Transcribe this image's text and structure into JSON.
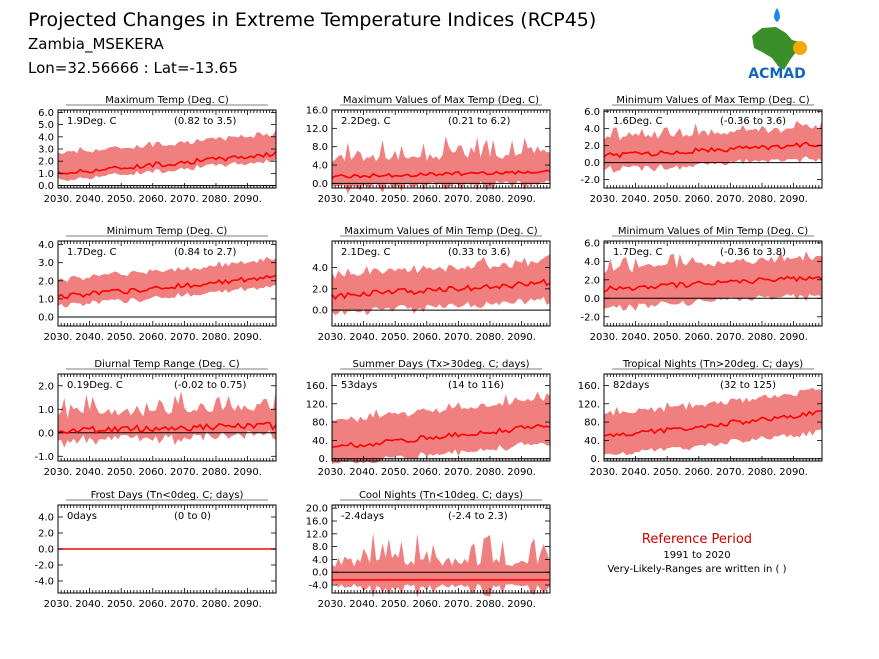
{
  "header": {
    "title": "Projected Changes in Extreme Temperature Indices (RCP45)",
    "station": "Zambia_MSEKERA",
    "coords": "Lon=32.56666 : Lat=-13.65"
  },
  "logo": {
    "text": "ACMAD"
  },
  "reference": {
    "title": "Reference Period",
    "period": "1991 to 2020",
    "note": "Very-Likely-Ranges are written in ( )"
  },
  "colors": {
    "band": "#f08080",
    "line": "#ff0000",
    "zero": "#000000",
    "reference_title": "#cc0000",
    "logo_text": "#1565c0",
    "logo_map": "#3a8f2a",
    "logo_drop": "#1e88e5",
    "logo_sun": "#f2a900"
  },
  "chart_data": [
    {
      "type": "area",
      "title": "Maximum Temp (Deg. C)",
      "annotation_left": "1.9Deg. C",
      "annotation_right": "(0.82 to 3.5)",
      "x_ticks": [
        "2030.",
        "2040.",
        "2050.",
        "2060.",
        "2070.",
        "2080.",
        "2090."
      ],
      "y_ticks": [
        "0.0",
        "1.0",
        "2.0",
        "3.0",
        "4.0",
        "5.0",
        "6.0"
      ],
      "xlim": [
        2030,
        2099
      ],
      "ylim": [
        -0.2,
        6.2
      ],
      "mean_start": 1.0,
      "mean_end": 2.6,
      "band_low": 0.5,
      "band_high": 1.6,
      "noise": 0.2,
      "spike": 0.3
    },
    {
      "type": "area",
      "title": "Maximum Values of Max Temp (Deg. C)",
      "annotation_left": "2.2Deg. C",
      "annotation_right": "(0.21 to 6.2)",
      "x_ticks": [
        "2030.",
        "2040.",
        "2050.",
        "2060.",
        "2070.",
        "2080.",
        "2090."
      ],
      "y_ticks": [
        "0.0",
        "4.0",
        "8.0",
        "12.0",
        "16.0"
      ],
      "xlim": [
        2030,
        2099
      ],
      "ylim": [
        -1,
        16
      ],
      "mean_start": 1.5,
      "mean_end": 2.6,
      "band_low": 1.8,
      "band_high": 3.0,
      "noise": 0.4,
      "spike": 5.0
    },
    {
      "type": "area",
      "title": "Minimum Values of Max Temp (Deg. C)",
      "annotation_left": "1.6Deg. C",
      "annotation_right": "(-0.36 to 3.6)",
      "x_ticks": [
        "2030.",
        "2040.",
        "2050.",
        "2060.",
        "2070.",
        "2080.",
        "2090."
      ],
      "y_ticks": [
        "-2.0",
        "0.0",
        "2.0",
        "4.0",
        "6.0"
      ],
      "xlim": [
        2030,
        2099
      ],
      "ylim": [
        -3,
        6.2
      ],
      "mean_start": 0.8,
      "mean_end": 2.2,
      "band_low": 1.5,
      "band_high": 1.8,
      "noise": 0.3,
      "spike": 1.5
    },
    {
      "type": "area",
      "title": "Minimum Temp (Deg. C)",
      "annotation_left": "1.7Deg. C",
      "annotation_right": "(0.84 to 2.7)",
      "x_ticks": [
        "2030.",
        "2040.",
        "2050.",
        "2060.",
        "2070.",
        "2080.",
        "2090."
      ],
      "y_ticks": [
        "0.0",
        "1.0",
        "2.0",
        "3.0",
        "4.0"
      ],
      "xlim": [
        2030,
        2099
      ],
      "ylim": [
        -0.5,
        4.2
      ],
      "mean_start": 1.1,
      "mean_end": 2.2,
      "band_low": 0.5,
      "band_high": 0.9,
      "noise": 0.15,
      "spike": 0.2
    },
    {
      "type": "area",
      "title": "Maximum Values of Min Temp (Deg. C)",
      "annotation_left": "2.1Deg. C",
      "annotation_right": "(0.33 to 3.6)",
      "x_ticks": [
        "2030.",
        "2040.",
        "2050.",
        "2060.",
        "2070.",
        "2080.",
        "2090."
      ],
      "y_ticks": [
        "0.0",
        "2.0",
        "4.0"
      ],
      "xlim": [
        2030,
        2099
      ],
      "ylim": [
        -1.5,
        6.5
      ],
      "mean_start": 1.3,
      "mean_end": 2.6,
      "band_low": 1.5,
      "band_high": 1.8,
      "noise": 0.3,
      "spike": 1.0
    },
    {
      "type": "area",
      "title": "Minimum Values of Min Temp (Deg. C)",
      "annotation_left": "1.7Deg. C",
      "annotation_right": "(-0.36 to 3.8)",
      "x_ticks": [
        "2030.",
        "2040.",
        "2050.",
        "2060.",
        "2070.",
        "2080.",
        "2090."
      ],
      "y_ticks": [
        "-2.0",
        "0.0",
        "2.0",
        "4.0",
        "6.0"
      ],
      "xlim": [
        2030,
        2099
      ],
      "ylim": [
        -3,
        6.2
      ],
      "mean_start": 1.0,
      "mean_end": 2.3,
      "band_low": 1.8,
      "band_high": 1.9,
      "noise": 0.3,
      "spike": 1.5
    },
    {
      "type": "area",
      "title": "Diurnal Temp Range (Deg. C)",
      "annotation_left": "0.19Deg. C",
      "annotation_right": "(-0.02 to 0.75)",
      "x_ticks": [
        "2030.",
        "2040.",
        "2050.",
        "2060.",
        "2070.",
        "2080.",
        "2090."
      ],
      "y_ticks": [
        "-1.0",
        "0.0",
        "1.0",
        "2.0"
      ],
      "xlim": [
        2030,
        2099
      ],
      "ylim": [
        -1.2,
        2.5
      ],
      "mean_start": 0.1,
      "mean_end": 0.3,
      "band_low": 0.3,
      "band_high": 0.6,
      "noise": 0.15,
      "spike": 0.9
    },
    {
      "type": "area",
      "title": "Summer Days (Tx>30deg. C; days)",
      "annotation_left": "53days",
      "annotation_right": "(14 to 116)",
      "x_ticks": [
        "2030.",
        "2040.",
        "2050.",
        "2060.",
        "2070.",
        "2080.",
        "2090."
      ],
      "y_ticks": [
        "0.",
        "40.",
        "80.",
        "120.",
        "160."
      ],
      "xlim": [
        2030,
        2099
      ],
      "ylim": [
        -5,
        185
      ],
      "mean_start": 25,
      "mean_end": 72,
      "band_low": 35,
      "band_high": 55,
      "noise": 6,
      "spike": 25
    },
    {
      "type": "area",
      "title": "Tropical Nights (Tn>20deg. C; days)",
      "annotation_left": "82days",
      "annotation_right": "(32 to 125)",
      "x_ticks": [
        "2030.",
        "2040.",
        "2050.",
        "2060.",
        "2070.",
        "2080.",
        "2090."
      ],
      "y_ticks": [
        "0.",
        "40.",
        "80.",
        "120.",
        "160."
      ],
      "xlim": [
        2030,
        2099
      ],
      "ylim": [
        -5,
        185
      ],
      "mean_start": 48,
      "mean_end": 100,
      "band_low": 40,
      "band_high": 45,
      "noise": 6,
      "spike": 15
    },
    {
      "type": "area",
      "title": "Frost Days (Tn<0deg. C; days)",
      "annotation_left": "0days",
      "annotation_right": "(0 to 0)",
      "x_ticks": [
        "2030.",
        "2040.",
        "2050.",
        "2060.",
        "2070.",
        "2080.",
        "2090."
      ],
      "y_ticks": [
        "-4.0",
        "-2.0",
        "0.0",
        "2.0",
        "4.0"
      ],
      "xlim": [
        2030,
        2099
      ],
      "ylim": [
        -5.5,
        5.5
      ],
      "mean_start": 0,
      "mean_end": 0,
      "band_low": 0,
      "band_high": 0,
      "noise": 0,
      "spike": 0
    },
    {
      "type": "area",
      "title": "Cool Nights (Tn<10deg. C; days)",
      "annotation_left": "-2.4days",
      "annotation_right": "(-2.4 to 2.3)",
      "x_ticks": [
        "2030.",
        "2040.",
        "2050.",
        "2060.",
        "2070.",
        "2080.",
        "2090."
      ],
      "y_ticks": [
        "-4.0",
        "0.0",
        "4.0",
        "8.0",
        "12.0",
        "16.0",
        "20.0"
      ],
      "xlim": [
        2030,
        2099
      ],
      "ylim": [
        -6.5,
        21
      ],
      "mean_start": -2.4,
      "mean_end": -2.4,
      "band_low": 1.2,
      "band_high": 4.0,
      "noise": 0,
      "spike": 11
    }
  ]
}
